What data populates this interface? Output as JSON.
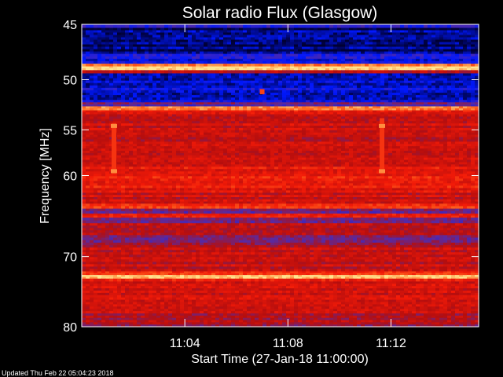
{
  "chart_data": {
    "type": "heatmap",
    "title": "Solar radio Flux (Glasgow)",
    "xlabel": "Start Time (27-Jan-18 11:00:00)",
    "ylabel": "Frequency [MHz]",
    "x_unit": "minutes",
    "xlim": [
      0,
      15.4
    ],
    "ylim_log": true,
    "ylim": [
      45,
      80
    ],
    "x_ticks": [
      {
        "value": 4,
        "label": "11:04"
      },
      {
        "value": 8,
        "label": "11:08"
      },
      {
        "value": 12,
        "label": "11:12"
      }
    ],
    "y_ticks": [
      {
        "value": 45,
        "label": "45"
      },
      {
        "value": 50,
        "label": "50"
      },
      {
        "value": 55,
        "label": "55"
      },
      {
        "value": 60,
        "label": "60"
      },
      {
        "value": 70,
        "label": "70"
      },
      {
        "value": 80,
        "label": "80"
      }
    ],
    "colormap": [
      "#000033",
      "#0018ff",
      "#5a2aa0",
      "#b50e0e",
      "#f21a08",
      "#ff6a20",
      "#ffe690"
    ],
    "bands": [
      {
        "from": 45,
        "to": 45.3,
        "level": 0.3
      },
      {
        "from": 45.3,
        "to": 47.6,
        "level": 0.05
      },
      {
        "from": 47.6,
        "to": 48.5,
        "level": 0.18
      },
      {
        "from": 48.5,
        "to": 48.75,
        "level": 0.8
      },
      {
        "from": 48.75,
        "to": 49.1,
        "level": 0.97
      },
      {
        "from": 49.1,
        "to": 49.4,
        "level": 0.5
      },
      {
        "from": 49.4,
        "to": 52.2,
        "level": 0.14
      },
      {
        "from": 52.2,
        "to": 52.6,
        "level": 0.35
      },
      {
        "from": 52.6,
        "to": 53.0,
        "level": 0.82
      },
      {
        "from": 53.0,
        "to": 53.4,
        "level": 0.62
      },
      {
        "from": 53.4,
        "to": 56.5,
        "level": 0.55
      },
      {
        "from": 56.5,
        "to": 59.0,
        "level": 0.58
      },
      {
        "from": 59.0,
        "to": 62.0,
        "level": 0.64
      },
      {
        "from": 62.0,
        "to": 63.3,
        "level": 0.55
      },
      {
        "from": 63.3,
        "to": 63.9,
        "level": 0.74
      },
      {
        "from": 63.9,
        "to": 64.5,
        "level": 0.4
      },
      {
        "from": 64.5,
        "to": 65.0,
        "level": 0.7
      },
      {
        "from": 65.0,
        "to": 65.7,
        "level": 0.42
      },
      {
        "from": 65.7,
        "to": 67.2,
        "level": 0.5
      },
      {
        "from": 67.2,
        "to": 68.5,
        "level": 0.4
      },
      {
        "from": 68.5,
        "to": 72.0,
        "level": 0.55
      },
      {
        "from": 72.0,
        "to": 72.5,
        "level": 0.75
      },
      {
        "from": 72.5,
        "to": 73.0,
        "level": 0.97
      },
      {
        "from": 73.0,
        "to": 73.4,
        "level": 0.65
      },
      {
        "from": 73.4,
        "to": 78.0,
        "level": 0.58
      },
      {
        "from": 78.0,
        "to": 80.0,
        "level": 0.48
      }
    ],
    "spikes": [
      {
        "x": 1.25,
        "from": 54.3,
        "to": 59.8,
        "level": 0.72,
        "hot_at": [
          54.6,
          59.5
        ]
      },
      {
        "x": 11.65,
        "from": 53.8,
        "to": 59.8,
        "level": 0.72,
        "hot_at": [
          54.6,
          59.5
        ]
      },
      {
        "x": 7.0,
        "from": 50.9,
        "to": 51.4,
        "level": 0.75,
        "hot_at": []
      }
    ],
    "grid": false,
    "legend": "none"
  },
  "footer": {
    "updated": "Updated Thu Feb 22 05:04:23 2018"
  }
}
